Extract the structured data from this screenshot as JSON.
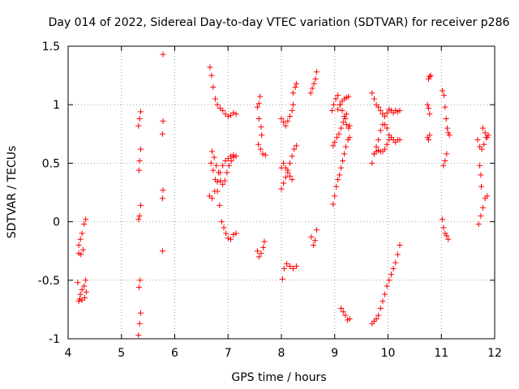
{
  "chart_data": {
    "type": "scatter",
    "title": "Day 014 of 2022, Sidereal Day-to-day VTEC variation (SDTVAR) for receiver p286",
    "xlabel": "GPS time / hours",
    "ylabel": "SDTVAR / TECUs",
    "xlim": [
      4,
      12
    ],
    "ylim": [
      -1,
      1.5
    ],
    "xticks": [
      4,
      5,
      6,
      7,
      8,
      9,
      10,
      11,
      12
    ],
    "xtick_labels": [
      "4",
      "5",
      "6",
      "7",
      "8",
      "9",
      "10",
      "11",
      "12"
    ],
    "yticks": [
      -1,
      -0.5,
      0,
      0.5,
      1,
      1.5
    ],
    "ytick_labels": [
      "-1",
      "-0.5",
      "0",
      "0.5",
      "1",
      "1.5"
    ],
    "grid": true,
    "marker": "+",
    "color": "#ff0000",
    "segments": [
      [
        [
          4.2,
          -0.27
        ],
        [
          4.23,
          -0.15
        ],
        [
          4.26,
          -0.1
        ],
        [
          4.3,
          -0.02
        ],
        [
          4.33,
          0.02
        ]
      ],
      [
        [
          4.2,
          -0.2
        ],
        [
          4.24,
          -0.28
        ],
        [
          4.28,
          -0.24
        ]
      ],
      [
        [
          4.2,
          -0.68
        ],
        [
          4.23,
          -0.62
        ],
        [
          4.26,
          -0.58
        ],
        [
          4.3,
          -0.55
        ],
        [
          4.33,
          -0.5
        ]
      ],
      [
        [
          4.18,
          -0.52
        ],
        [
          4.22,
          -0.66
        ],
        [
          4.26,
          -0.67
        ],
        [
          4.31,
          -0.65
        ],
        [
          4.34,
          -0.6
        ]
      ],
      [
        [
          5.32,
          -0.97
        ],
        [
          5.34,
          -0.87
        ],
        [
          5.36,
          -0.78
        ]
      ],
      [
        [
          5.33,
          -0.56
        ],
        [
          5.35,
          -0.5
        ]
      ],
      [
        [
          5.32,
          0.02
        ],
        [
          5.34,
          0.05
        ],
        [
          5.36,
          0.14
        ]
      ],
      [
        [
          5.33,
          0.44
        ],
        [
          5.34,
          0.52
        ],
        [
          5.36,
          0.62
        ]
      ],
      [
        [
          5.32,
          0.82
        ],
        [
          5.34,
          0.88
        ],
        [
          5.36,
          0.94
        ]
      ],
      [
        [
          5.77,
          -0.25
        ],
        [
          5.77,
          0.2
        ],
        [
          5.78,
          0.27
        ],
        [
          5.77,
          0.75
        ],
        [
          5.78,
          0.86
        ]
      ],
      [
        [
          5.78,
          1.43
        ]
      ],
      [
        [
          6.66,
          1.32
        ],
        [
          6.69,
          1.25
        ],
        [
          6.72,
          1.15
        ],
        [
          6.76,
          1.05
        ],
        [
          6.8,
          1.0
        ],
        [
          6.85,
          0.97
        ],
        [
          6.9,
          0.95
        ],
        [
          6.95,
          0.92
        ],
        [
          7.0,
          0.9
        ],
        [
          7.05,
          0.91
        ],
        [
          7.1,
          0.93
        ],
        [
          7.15,
          0.92
        ]
      ],
      [
        [
          6.7,
          0.6
        ],
        [
          6.74,
          0.55
        ],
        [
          6.78,
          0.48
        ],
        [
          6.82,
          0.42
        ],
        [
          6.86,
          0.35
        ],
        [
          6.9,
          0.32
        ],
        [
          6.94,
          0.35
        ],
        [
          6.98,
          0.42
        ],
        [
          7.02,
          0.48
        ],
        [
          7.06,
          0.52
        ],
        [
          7.1,
          0.55
        ],
        [
          7.15,
          0.56
        ]
      ],
      [
        [
          6.65,
          0.22
        ],
        [
          6.7,
          0.2
        ],
        [
          6.75,
          0.26
        ],
        [
          6.8,
          0.34
        ],
        [
          6.85,
          0.42
        ],
        [
          6.9,
          0.48
        ],
        [
          6.95,
          0.52
        ],
        [
          7.0,
          0.54
        ],
        [
          7.05,
          0.56
        ],
        [
          7.1,
          0.57
        ]
      ],
      [
        [
          6.68,
          0.5
        ],
        [
          6.72,
          0.44
        ],
        [
          6.76,
          0.36
        ],
        [
          6.8,
          0.26
        ],
        [
          6.84,
          0.14
        ],
        [
          6.88,
          0.0
        ],
        [
          6.92,
          -0.05
        ],
        [
          6.96,
          -0.1
        ],
        [
          7.0,
          -0.14
        ],
        [
          7.05,
          -0.15
        ],
        [
          7.1,
          -0.11
        ],
        [
          7.15,
          -0.1
        ]
      ],
      [
        [
          7.55,
          0.98
        ],
        [
          7.58,
          1.01
        ],
        [
          7.6,
          1.07
        ],
        [
          7.58,
          0.88
        ],
        [
          7.62,
          0.81
        ],
        [
          7.63,
          0.74
        ]
      ],
      [
        [
          7.57,
          0.66
        ],
        [
          7.61,
          0.62
        ],
        [
          7.65,
          0.58
        ],
        [
          7.7,
          0.57
        ]
      ],
      [
        [
          7.55,
          -0.25
        ],
        [
          7.58,
          -0.3
        ],
        [
          7.62,
          -0.27
        ],
        [
          7.66,
          -0.22
        ],
        [
          7.68,
          -0.17
        ]
      ],
      [
        [
          8.0,
          0.88
        ],
        [
          8.04,
          0.85
        ],
        [
          8.08,
          0.82
        ],
        [
          8.12,
          0.86
        ],
        [
          8.16,
          0.9
        ],
        [
          8.2,
          0.95
        ],
        [
          8.22,
          1.0
        ]
      ],
      [
        [
          8.0,
          0.28
        ],
        [
          8.04,
          0.33
        ],
        [
          8.08,
          0.38
        ],
        [
          8.12,
          0.44
        ],
        [
          8.16,
          0.5
        ],
        [
          8.2,
          0.56
        ],
        [
          8.24,
          0.62
        ],
        [
          8.28,
          0.65
        ]
      ],
      [
        [
          8.0,
          0.46
        ],
        [
          8.04,
          0.5
        ],
        [
          8.08,
          0.46
        ],
        [
          8.12,
          0.42
        ],
        [
          8.16,
          0.39
        ],
        [
          8.2,
          0.36
        ]
      ],
      [
        [
          8.02,
          -0.49
        ],
        [
          8.05,
          -0.4
        ],
        [
          8.1,
          -0.36
        ],
        [
          8.16,
          -0.38
        ],
        [
          8.22,
          -0.4
        ],
        [
          8.28,
          -0.38
        ]
      ],
      [
        [
          8.22,
          1.1
        ],
        [
          8.26,
          1.15
        ],
        [
          8.28,
          1.18
        ]
      ],
      [
        [
          8.55,
          1.1
        ],
        [
          8.58,
          1.14
        ],
        [
          8.61,
          1.18
        ],
        [
          8.64,
          1.22
        ],
        [
          8.66,
          1.28
        ]
      ],
      [
        [
          8.56,
          -0.13
        ],
        [
          8.6,
          -0.2
        ],
        [
          8.63,
          -0.16
        ],
        [
          8.66,
          -0.07
        ]
      ],
      [
        [
          8.95,
          0.95
        ],
        [
          8.98,
          1.0
        ],
        [
          9.02,
          1.05
        ],
        [
          9.06,
          1.08
        ],
        [
          9.1,
          1.0
        ],
        [
          9.14,
          0.95
        ],
        [
          9.18,
          0.9
        ],
        [
          9.22,
          0.83
        ],
        [
          9.26,
          0.8
        ],
        [
          9.28,
          0.82
        ]
      ],
      [
        [
          8.97,
          0.65
        ],
        [
          9.0,
          0.68
        ],
        [
          9.04,
          0.72
        ],
        [
          9.08,
          0.75
        ],
        [
          9.12,
          0.8
        ],
        [
          9.16,
          0.85
        ],
        [
          9.2,
          0.88
        ],
        [
          9.22,
          0.92
        ]
      ],
      [
        [
          9.06,
          0.96
        ],
        [
          9.1,
          1.0
        ],
        [
          9.14,
          1.03
        ],
        [
          9.18,
          1.05
        ],
        [
          9.22,
          1.06
        ],
        [
          9.26,
          1.07
        ]
      ],
      [
        [
          8.97,
          0.15
        ],
        [
          9.0,
          0.22
        ],
        [
          9.03,
          0.3
        ],
        [
          9.06,
          0.36
        ],
        [
          9.09,
          0.4
        ],
        [
          9.12,
          0.46
        ],
        [
          9.15,
          0.52
        ],
        [
          9.18,
          0.58
        ],
        [
          9.21,
          0.64
        ],
        [
          9.25,
          0.7
        ],
        [
          9.28,
          0.72
        ]
      ],
      [
        [
          9.12,
          -0.74
        ],
        [
          9.16,
          -0.77
        ],
        [
          9.2,
          -0.8
        ],
        [
          9.24,
          -0.84
        ],
        [
          9.28,
          -0.83
        ]
      ],
      [
        [
          9.7,
          1.1
        ],
        [
          9.74,
          1.05
        ],
        [
          9.78,
          1.0
        ],
        [
          9.82,
          0.98
        ],
        [
          9.86,
          0.95
        ],
        [
          9.9,
          0.92
        ],
        [
          9.94,
          0.9
        ],
        [
          9.98,
          0.93
        ],
        [
          10.02,
          0.96
        ],
        [
          10.06,
          0.95
        ],
        [
          10.1,
          0.93
        ],
        [
          10.14,
          0.95
        ],
        [
          10.18,
          0.94
        ],
        [
          10.22,
          0.95
        ]
      ],
      [
        [
          9.7,
          0.5
        ],
        [
          9.74,
          0.58
        ],
        [
          9.78,
          0.64
        ],
        [
          9.82,
          0.7
        ],
        [
          9.86,
          0.78
        ],
        [
          9.9,
          0.83
        ],
        [
          9.94,
          0.83
        ],
        [
          9.98,
          0.8
        ],
        [
          10.02,
          0.74
        ]
      ],
      [
        [
          9.74,
          0.58
        ],
        [
          9.78,
          0.6
        ],
        [
          9.82,
          0.61
        ],
        [
          9.86,
          0.6
        ],
        [
          9.9,
          0.6
        ],
        [
          9.94,
          0.62
        ],
        [
          9.98,
          0.66
        ],
        [
          10.02,
          0.7
        ],
        [
          10.06,
          0.72
        ],
        [
          10.1,
          0.7
        ],
        [
          10.14,
          0.68
        ],
        [
          10.18,
          0.7
        ],
        [
          10.22,
          0.7
        ]
      ],
      [
        [
          9.7,
          -0.87
        ],
        [
          9.74,
          -0.85
        ],
        [
          9.78,
          -0.83
        ],
        [
          9.82,
          -0.8
        ],
        [
          9.86,
          -0.74
        ],
        [
          9.9,
          -0.68
        ],
        [
          9.94,
          -0.62
        ],
        [
          9.98,
          -0.55
        ],
        [
          10.02,
          -0.5
        ],
        [
          10.06,
          -0.45
        ],
        [
          10.1,
          -0.4
        ],
        [
          10.14,
          -0.35
        ],
        [
          10.18,
          -0.28
        ],
        [
          10.22,
          -0.2
        ]
      ],
      [
        [
          10.76,
          1.22
        ],
        [
          10.78,
          1.24
        ],
        [
          10.8,
          1.25
        ]
      ],
      [
        [
          10.74,
          1.0
        ],
        [
          10.76,
          0.97
        ],
        [
          10.78,
          0.92
        ]
      ],
      [
        [
          10.74,
          0.72
        ],
        [
          10.76,
          0.7
        ],
        [
          10.78,
          0.74
        ]
      ],
      [
        [
          11.02,
          1.12
        ],
        [
          11.05,
          1.08
        ],
        [
          11.07,
          0.98
        ],
        [
          11.09,
          0.88
        ],
        [
          11.11,
          0.8
        ],
        [
          11.13,
          0.76
        ],
        [
          11.15,
          0.74
        ]
      ],
      [
        [
          11.04,
          0.48
        ],
        [
          11.07,
          0.52
        ],
        [
          11.1,
          0.58
        ]
      ],
      [
        [
          11.02,
          0.02
        ],
        [
          11.04,
          -0.05
        ],
        [
          11.07,
          -0.1
        ],
        [
          11.1,
          -0.12
        ],
        [
          11.13,
          -0.15
        ]
      ],
      [
        [
          11.68,
          0.7
        ],
        [
          11.72,
          0.64
        ],
        [
          11.76,
          0.62
        ],
        [
          11.8,
          0.66
        ],
        [
          11.84,
          0.72
        ]
      ],
      [
        [
          11.72,
          0.48
        ],
        [
          11.74,
          0.4
        ],
        [
          11.75,
          0.3
        ]
      ],
      [
        [
          11.7,
          -0.02
        ],
        [
          11.74,
          0.05
        ],
        [
          11.78,
          0.12
        ],
        [
          11.82,
          0.2
        ],
        [
          11.86,
          0.22
        ]
      ],
      [
        [
          11.78,
          0.8
        ],
        [
          11.82,
          0.76
        ],
        [
          11.86,
          0.72
        ],
        [
          11.88,
          0.74
        ]
      ]
    ]
  }
}
